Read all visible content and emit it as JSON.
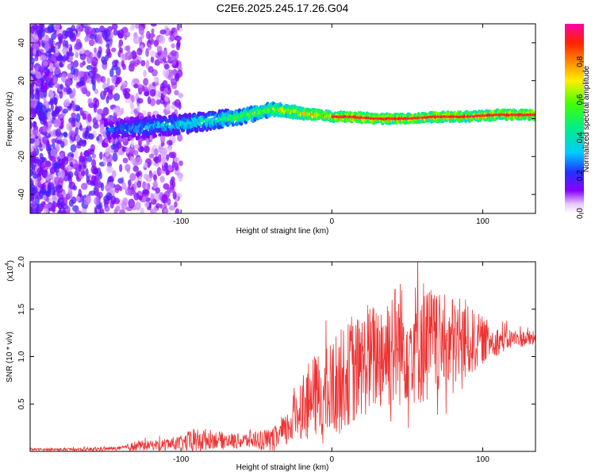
{
  "title": "C2E6.2025.245.17.26.G04",
  "chart_data": [
    {
      "type": "heatmap",
      "xlabel": "Height of straight line (km)",
      "ylabel": "Frequency (Hz)",
      "xlim": [
        -200,
        135
      ],
      "ylim": [
        -50,
        50
      ],
      "xticks": [
        -100,
        0,
        100
      ],
      "xtick_labels": [
        "-100",
        "0",
        "100"
      ],
      "yticks": [
        -40,
        -20,
        0,
        20,
        40
      ],
      "ytick_labels": [
        "-40",
        "-20",
        "0",
        "20",
        "40"
      ],
      "colorbar": {
        "label": "Normalized spectral amplitude",
        "range": [
          0,
          1
        ],
        "ticks": [
          0,
          0.2,
          0.4,
          0.6,
          0.8
        ],
        "tick_labels": [
          "0.0",
          "0.2",
          "0.4",
          "0.6",
          "0.8"
        ],
        "colormap": "rainbow (purple-blue-cyan-green-yellow-red-magenta)"
      },
      "ridge": {
        "x": [
          -145,
          -130,
          -115,
          -100,
          -90,
          -80,
          -70,
          -60,
          -50,
          -40,
          -30,
          -20,
          -10,
          0,
          10,
          30,
          50,
          70,
          90,
          110,
          135
        ],
        "freq": [
          -6,
          -5,
          -4,
          -3,
          -2,
          -1,
          0,
          1,
          3,
          5,
          4,
          3,
          2,
          1,
          1,
          0,
          0,
          1,
          1,
          2,
          2
        ],
        "amp": [
          0.3,
          0.35,
          0.4,
          0.45,
          0.5,
          0.55,
          0.6,
          0.65,
          0.7,
          0.75,
          0.8,
          0.85,
          0.9,
          0.9,
          0.95,
          0.95,
          0.95,
          0.95,
          0.95,
          0.95,
          0.95
        ]
      }
    },
    {
      "type": "line",
      "xlabel": "Height of straight line (km)",
      "ylabel": "SNR (10 * v/v)",
      "y_multiplier_label": "(x10",
      "y_multiplier_exp": "4",
      "xlim": [
        -200,
        135
      ],
      "ylim": [
        0,
        2.0
      ],
      "xticks": [
        -100,
        0,
        100
      ],
      "xtick_labels": [
        "-100",
        "0",
        "100"
      ],
      "yticks": [
        0.5,
        1.0,
        1.5,
        2.0
      ],
      "ytick_labels": [
        "0.5",
        "1.0",
        "1.5",
        "2.0"
      ],
      "color": "#ee3333",
      "envelope": {
        "x": [
          -200,
          -160,
          -140,
          -130,
          -120,
          -100,
          -90,
          -80,
          -70,
          -60,
          -50,
          -40,
          -30,
          -25,
          -20,
          -10,
          -5,
          0,
          10,
          20,
          30,
          40,
          50,
          60,
          70,
          80,
          90,
          100,
          110,
          120,
          135
        ],
        "base": [
          0.02,
          0.02,
          0.03,
          0.05,
          0.06,
          0.08,
          0.1,
          0.12,
          0.11,
          0.1,
          0.12,
          0.1,
          0.2,
          0.35,
          0.45,
          0.55,
          0.5,
          0.6,
          0.75,
          0.85,
          0.95,
          1.05,
          1.05,
          1.1,
          1.05,
          1.1,
          1.1,
          1.15,
          1.15,
          1.18,
          1.18
        ],
        "amp": [
          0.01,
          0.02,
          0.02,
          0.06,
          0.05,
          0.08,
          0.15,
          0.1,
          0.08,
          0.08,
          0.1,
          0.12,
          0.18,
          0.3,
          0.35,
          0.45,
          0.5,
          0.55,
          0.55,
          0.55,
          0.6,
          0.7,
          0.6,
          0.7,
          0.55,
          0.5,
          0.4,
          0.25,
          0.15,
          0.1,
          0.08
        ]
      },
      "notes": "Dense noisy red trace; peaks near 2.0 around x≈40 and x≈60."
    }
  ]
}
